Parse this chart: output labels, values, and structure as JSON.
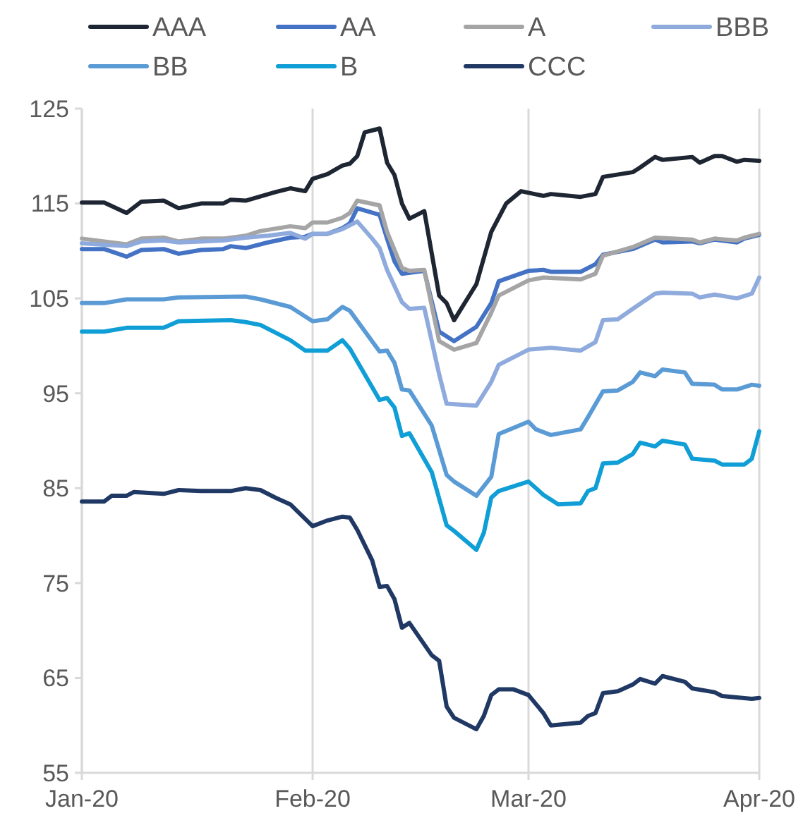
{
  "chart_data": {
    "type": "line",
    "xlim": [
      "2020-01-01",
      "2020-04-01"
    ],
    "xticks": [
      {
        "value": "2020-01-01",
        "label": "Jan-20"
      },
      {
        "value": "2020-02-01",
        "label": "Feb-20"
      },
      {
        "value": "2020-03-01",
        "label": "Mar-20"
      },
      {
        "value": "2020-04-01",
        "label": "Apr-20"
      }
    ],
    "ylim": [
      55,
      125
    ],
    "yticks": [
      55,
      65,
      75,
      85,
      95,
      105,
      115,
      125
    ],
    "grid": "x",
    "legend": "top",
    "line_style": "solid",
    "marker": "none",
    "series": [
      {
        "name": "AAA",
        "color": "#1f2633",
        "x": [
          "2020-01-01",
          "2020-01-04",
          "2020-01-07",
          "2020-01-09",
          "2020-01-12",
          "2020-01-14",
          "2020-01-17",
          "2020-01-20",
          "2020-01-21",
          "2020-01-23",
          "2020-01-27",
          "2020-01-29",
          "2020-01-31",
          "2020-02-01",
          "2020-02-03",
          "2020-02-05",
          "2020-02-06",
          "2020-02-07",
          "2020-02-08",
          "2020-02-10",
          "2020-02-11",
          "2020-02-12",
          "2020-02-13",
          "2020-02-14",
          "2020-02-16",
          "2020-02-18",
          "2020-02-19",
          "2020-02-20",
          "2020-02-23",
          "2020-02-25",
          "2020-02-27",
          "2020-02-29",
          "2020-03-03",
          "2020-03-04",
          "2020-03-08",
          "2020-03-10",
          "2020-03-11",
          "2020-03-15",
          "2020-03-16",
          "2020-03-18",
          "2020-03-19",
          "2020-03-23",
          "2020-03-24",
          "2020-03-26",
          "2020-03-27",
          "2020-03-29",
          "2020-03-30",
          "2020-04-01"
        ],
        "values": [
          115.1,
          115.1,
          114.0,
          115.2,
          115.3,
          114.5,
          115.0,
          115.0,
          115.4,
          115.3,
          116.2,
          116.6,
          116.3,
          117.6,
          118.1,
          119.0,
          119.2,
          120.0,
          122.5,
          122.9,
          119.3,
          118.0,
          115.0,
          113.4,
          114.2,
          105.3,
          104.5,
          102.7,
          106.5,
          112.0,
          115.0,
          116.3,
          115.8,
          116.0,
          115.7,
          116.0,
          117.8,
          118.3,
          118.8,
          119.9,
          119.6,
          119.9,
          119.3,
          120.0,
          120.0,
          119.4,
          119.6,
          119.5
        ]
      },
      {
        "name": "AA",
        "color": "#4472c4",
        "x": [
          "2020-01-01",
          "2020-01-04",
          "2020-01-07",
          "2020-01-09",
          "2020-01-12",
          "2020-01-14",
          "2020-01-17",
          "2020-01-20",
          "2020-01-21",
          "2020-01-23",
          "2020-01-26",
          "2020-01-29",
          "2020-01-31",
          "2020-02-01",
          "2020-02-03",
          "2020-02-05",
          "2020-02-06",
          "2020-02-07",
          "2020-02-10",
          "2020-02-11",
          "2020-02-12",
          "2020-02-13",
          "2020-02-16",
          "2020-02-18",
          "2020-02-20",
          "2020-02-23",
          "2020-02-25",
          "2020-02-26",
          "2020-03-01",
          "2020-03-03",
          "2020-03-04",
          "2020-03-08",
          "2020-03-10",
          "2020-03-11",
          "2020-03-15",
          "2020-03-18",
          "2020-03-19",
          "2020-03-23",
          "2020-03-24",
          "2020-03-26",
          "2020-03-29",
          "2020-03-30",
          "2020-04-01"
        ],
        "values": [
          110.2,
          110.2,
          109.4,
          110.1,
          110.2,
          109.7,
          110.1,
          110.2,
          110.5,
          110.3,
          110.9,
          111.4,
          111.5,
          111.8,
          111.8,
          112.4,
          112.9,
          114.5,
          113.8,
          111.3,
          108.9,
          107.6,
          107.9,
          101.5,
          100.5,
          102.0,
          104.5,
          106.8,
          107.9,
          108.0,
          107.8,
          107.8,
          108.6,
          109.6,
          110.2,
          111.2,
          110.9,
          111.0,
          110.8,
          111.2,
          110.9,
          111.3,
          111.7
        ]
      },
      {
        "name": "A",
        "color": "#a5a5a5",
        "x": [
          "2020-01-01",
          "2020-01-07",
          "2020-01-09",
          "2020-01-12",
          "2020-01-14",
          "2020-01-17",
          "2020-01-20",
          "2020-01-23",
          "2020-01-25",
          "2020-01-29",
          "2020-01-31",
          "2020-02-01",
          "2020-02-03",
          "2020-02-05",
          "2020-02-06",
          "2020-02-07",
          "2020-02-10",
          "2020-02-11",
          "2020-02-13",
          "2020-02-14",
          "2020-02-16",
          "2020-02-18",
          "2020-02-20",
          "2020-02-23",
          "2020-02-25",
          "2020-02-26",
          "2020-03-01",
          "2020-03-03",
          "2020-03-08",
          "2020-03-10",
          "2020-03-11",
          "2020-03-15",
          "2020-03-18",
          "2020-03-23",
          "2020-03-24",
          "2020-03-26",
          "2020-03-29",
          "2020-03-30",
          "2020-04-01"
        ],
        "values": [
          111.3,
          110.7,
          111.3,
          111.4,
          111.0,
          111.3,
          111.3,
          111.6,
          112.1,
          112.6,
          112.4,
          113.0,
          113.0,
          113.5,
          114.0,
          115.3,
          114.8,
          112.0,
          108.2,
          107.9,
          108.0,
          100.5,
          99.6,
          100.3,
          103.5,
          105.3,
          106.9,
          107.2,
          107.0,
          107.6,
          109.5,
          110.4,
          111.4,
          111.2,
          110.9,
          111.3,
          111.1,
          111.4,
          111.8
        ]
      },
      {
        "name": "BBB",
        "color": "#8faadc",
        "x": [
          "2020-01-01",
          "2020-01-07",
          "2020-01-09",
          "2020-01-12",
          "2020-01-14",
          "2020-01-17",
          "2020-01-20",
          "2020-01-23",
          "2020-01-26",
          "2020-01-29",
          "2020-01-31",
          "2020-02-01",
          "2020-02-03",
          "2020-02-05",
          "2020-02-07",
          "2020-02-09",
          "2020-02-10",
          "2020-02-11",
          "2020-02-13",
          "2020-02-14",
          "2020-02-16",
          "2020-02-18",
          "2020-02-19",
          "2020-02-23",
          "2020-02-25",
          "2020-02-26",
          "2020-03-01",
          "2020-03-04",
          "2020-03-08",
          "2020-03-10",
          "2020-03-11",
          "2020-03-13",
          "2020-03-15",
          "2020-03-18",
          "2020-03-19",
          "2020-03-23",
          "2020-03-24",
          "2020-03-26",
          "2020-03-29",
          "2020-03-31",
          "2020-04-01"
        ],
        "values": [
          110.8,
          110.5,
          111.0,
          111.1,
          110.9,
          111.0,
          111.1,
          111.4,
          111.6,
          111.9,
          111.3,
          111.8,
          111.8,
          112.3,
          113.1,
          111.3,
          110.3,
          108.0,
          104.6,
          103.9,
          104.0,
          97.0,
          93.9,
          93.7,
          96.2,
          98.0,
          99.6,
          99.8,
          99.5,
          100.4,
          102.7,
          102.8,
          103.9,
          105.5,
          105.6,
          105.5,
          105.1,
          105.4,
          105.0,
          105.5,
          107.2
        ]
      },
      {
        "name": "BB",
        "color": "#5b9bd5",
        "x": [
          "2020-01-01",
          "2020-01-04",
          "2020-01-07",
          "2020-01-12",
          "2020-01-14",
          "2020-01-23",
          "2020-01-25",
          "2020-01-29",
          "2020-02-01",
          "2020-02-03",
          "2020-02-05",
          "2020-02-06",
          "2020-02-10",
          "2020-02-11",
          "2020-02-12",
          "2020-02-13",
          "2020-02-14",
          "2020-02-17",
          "2020-02-19",
          "2020-02-20",
          "2020-02-23",
          "2020-02-25",
          "2020-02-26",
          "2020-03-01",
          "2020-03-02",
          "2020-03-04",
          "2020-03-08",
          "2020-03-09",
          "2020-03-11",
          "2020-03-13",
          "2020-03-15",
          "2020-03-16",
          "2020-03-18",
          "2020-03-19",
          "2020-03-22",
          "2020-03-23",
          "2020-03-26",
          "2020-03-27",
          "2020-03-29",
          "2020-03-31",
          "2020-04-01"
        ],
        "values": [
          104.5,
          104.5,
          104.9,
          104.9,
          105.1,
          105.2,
          104.9,
          104.1,
          102.6,
          102.8,
          104.1,
          103.7,
          99.4,
          99.5,
          98.2,
          95.4,
          95.3,
          91.6,
          86.4,
          85.7,
          84.2,
          86.2,
          90.7,
          92.0,
          91.2,
          90.6,
          91.2,
          92.5,
          95.2,
          95.3,
          96.2,
          97.2,
          96.8,
          97.5,
          97.2,
          96.0,
          95.9,
          95.4,
          95.4,
          95.9,
          95.8
        ]
      },
      {
        "name": "B",
        "color": "#0f9ed5",
        "x": [
          "2020-01-01",
          "2020-01-04",
          "2020-01-07",
          "2020-01-12",
          "2020-01-14",
          "2020-01-21",
          "2020-01-23",
          "2020-01-25",
          "2020-01-29",
          "2020-01-31",
          "2020-02-03",
          "2020-02-05",
          "2020-02-06",
          "2020-02-10",
          "2020-02-11",
          "2020-02-12",
          "2020-02-13",
          "2020-02-14",
          "2020-02-17",
          "2020-02-19",
          "2020-02-20",
          "2020-02-23",
          "2020-02-24",
          "2020-02-25",
          "2020-02-26",
          "2020-03-01",
          "2020-03-03",
          "2020-03-05",
          "2020-03-08",
          "2020-03-09",
          "2020-03-10",
          "2020-03-11",
          "2020-03-13",
          "2020-03-15",
          "2020-03-16",
          "2020-03-18",
          "2020-03-19",
          "2020-03-22",
          "2020-03-23",
          "2020-03-26",
          "2020-03-27",
          "2020-03-30",
          "2020-03-31",
          "2020-04-01"
        ],
        "values": [
          101.5,
          101.5,
          101.9,
          101.9,
          102.6,
          102.7,
          102.5,
          102.2,
          100.6,
          99.5,
          99.5,
          100.6,
          99.7,
          94.3,
          94.5,
          93.5,
          90.5,
          90.8,
          86.7,
          81.1,
          80.5,
          78.5,
          80.3,
          84.0,
          84.7,
          85.7,
          84.3,
          83.3,
          83.4,
          84.7,
          85.0,
          87.6,
          87.7,
          88.6,
          89.8,
          89.4,
          90.0,
          89.6,
          88.1,
          87.9,
          87.5,
          87.5,
          88.1,
          91.0
        ]
      },
      {
        "name": "CCC",
        "color": "#203864",
        "x": [
          "2020-01-01",
          "2020-01-04",
          "2020-01-05",
          "2020-01-07",
          "2020-01-08",
          "2020-01-12",
          "2020-01-14",
          "2020-01-17",
          "2020-01-21",
          "2020-01-23",
          "2020-01-25",
          "2020-01-27",
          "2020-01-29",
          "2020-02-01",
          "2020-02-03",
          "2020-02-05",
          "2020-02-06",
          "2020-02-07",
          "2020-02-09",
          "2020-02-10",
          "2020-02-11",
          "2020-02-12",
          "2020-02-13",
          "2020-02-14",
          "2020-02-17",
          "2020-02-18",
          "2020-02-19",
          "2020-02-20",
          "2020-02-23",
          "2020-02-24",
          "2020-02-25",
          "2020-02-26",
          "2020-02-28",
          "2020-03-01",
          "2020-03-03",
          "2020-03-04",
          "2020-03-08",
          "2020-03-09",
          "2020-03-10",
          "2020-03-11",
          "2020-03-13",
          "2020-03-15",
          "2020-03-16",
          "2020-03-18",
          "2020-03-19",
          "2020-03-22",
          "2020-03-23",
          "2020-03-26",
          "2020-03-27",
          "2020-03-31",
          "2020-04-01"
        ],
        "values": [
          83.6,
          83.6,
          84.2,
          84.2,
          84.6,
          84.4,
          84.8,
          84.7,
          84.7,
          85.0,
          84.8,
          84.0,
          83.3,
          81.0,
          81.6,
          82.0,
          81.9,
          80.6,
          77.4,
          74.6,
          74.7,
          73.3,
          70.3,
          70.8,
          67.4,
          66.8,
          62.0,
          60.8,
          59.6,
          61.0,
          63.2,
          63.8,
          63.8,
          63.2,
          61.3,
          60.0,
          60.3,
          61.0,
          61.3,
          63.4,
          63.6,
          64.3,
          64.9,
          64.4,
          65.2,
          64.6,
          63.9,
          63.5,
          63.1,
          62.8,
          62.9
        ]
      }
    ]
  }
}
